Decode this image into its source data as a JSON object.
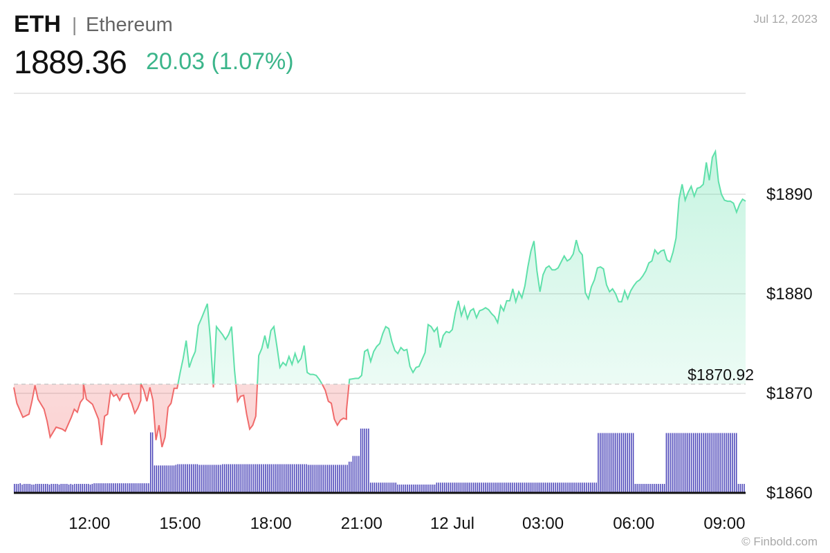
{
  "header": {
    "symbol": "ETH",
    "separator": "|",
    "name": "Ethereum",
    "price": "1889.36",
    "change": "20.03 (1.07%)",
    "date": "Jul 12, 2023"
  },
  "footer": {
    "credit": "© Finbold.com"
  },
  "colors": {
    "up": "#3bb58a",
    "up_line": "#5fe0aa",
    "down_line": "#f06a6a",
    "volume": "#4a44b8",
    "grid": "#dddddd"
  },
  "chart_data": {
    "type": "area",
    "reference": {
      "value": 1870.92,
      "label": "$1870.92"
    },
    "ylim": [
      1860,
      1890
    ],
    "y_ticks": [
      {
        "value": 1860,
        "label": "$1860"
      },
      {
        "value": 1870,
        "label": "$1870"
      },
      {
        "value": 1880,
        "label": "$1880"
      },
      {
        "value": 1890,
        "label": "$1890"
      }
    ],
    "x_ticks": [
      "12:00",
      "15:00",
      "18:00",
      "21:00",
      "12 Jul",
      "03:00",
      "06:00",
      "09:00"
    ],
    "x_tick_hours": [
      2.5,
      5.5,
      8.5,
      11.5,
      14.5,
      17.5,
      20.5,
      23.5
    ],
    "x_range_hours": [
      0,
      24.2
    ],
    "price_series": [
      [
        0.0,
        1870.6
      ],
      [
        0.1,
        1869.0
      ],
      [
        0.3,
        1867.6
      ],
      [
        0.5,
        1867.9
      ],
      [
        0.6,
        1869.2
      ],
      [
        0.7,
        1870.8
      ],
      [
        0.8,
        1869.4
      ],
      [
        1.0,
        1868.4
      ],
      [
        1.1,
        1867.2
      ],
      [
        1.2,
        1865.6
      ],
      [
        1.4,
        1866.6
      ],
      [
        1.6,
        1866.4
      ],
      [
        1.7,
        1866.2
      ],
      [
        1.9,
        1867.6
      ],
      [
        2.0,
        1868.4
      ],
      [
        2.1,
        1868.1
      ],
      [
        2.2,
        1869.1
      ],
      [
        2.3,
        1869.5
      ],
      [
        2.3,
        1871.0
      ],
      [
        2.4,
        1869.4
      ],
      [
        2.6,
        1868.9
      ],
      [
        2.8,
        1867.4
      ],
      [
        2.9,
        1864.8
      ],
      [
        3.0,
        1867.7
      ],
      [
        3.1,
        1867.9
      ],
      [
        3.2,
        1870.2
      ],
      [
        3.3,
        1869.7
      ],
      [
        3.4,
        1869.9
      ],
      [
        3.5,
        1869.3
      ],
      [
        3.6,
        1869.9
      ],
      [
        3.8,
        1870.0
      ],
      [
        3.8,
        1869.7
      ],
      [
        3.9,
        1869.0
      ],
      [
        4.0,
        1868.0
      ],
      [
        4.1,
        1868.5
      ],
      [
        4.2,
        1869.3
      ],
      [
        4.2,
        1871.0
      ],
      [
        4.3,
        1870.3
      ],
      [
        4.4,
        1869.2
      ],
      [
        4.5,
        1870.6
      ],
      [
        4.6,
        1869.3
      ],
      [
        4.7,
        1865.3
      ],
      [
        4.8,
        1866.8
      ],
      [
        4.9,
        1864.6
      ],
      [
        5.0,
        1865.6
      ],
      [
        5.1,
        1868.6
      ],
      [
        5.2,
        1869.0
      ],
      [
        5.3,
        1870.5
      ],
      [
        5.4,
        1870.5
      ],
      [
        5.5,
        1872.1
      ],
      [
        5.6,
        1873.5
      ],
      [
        5.7,
        1875.3
      ],
      [
        5.8,
        1872.6
      ],
      [
        5.9,
        1873.5
      ],
      [
        6.0,
        1874.2
      ],
      [
        6.1,
        1876.8
      ],
      [
        6.2,
        1877.5
      ],
      [
        6.4,
        1879.0
      ],
      [
        6.5,
        1875.4
      ],
      [
        6.6,
        1870.6
      ],
      [
        6.7,
        1876.7
      ],
      [
        6.8,
        1876.3
      ],
      [
        6.9,
        1875.9
      ],
      [
        7.0,
        1875.4
      ],
      [
        7.1,
        1875.9
      ],
      [
        7.2,
        1876.7
      ],
      [
        7.3,
        1872.3
      ],
      [
        7.4,
        1869.2
      ],
      [
        7.5,
        1869.7
      ],
      [
        7.6,
        1869.8
      ],
      [
        7.7,
        1867.9
      ],
      [
        7.8,
        1866.4
      ],
      [
        7.9,
        1866.8
      ],
      [
        8.0,
        1867.7
      ],
      [
        8.1,
        1873.8
      ],
      [
        8.2,
        1874.5
      ],
      [
        8.3,
        1875.8
      ],
      [
        8.4,
        1874.5
      ],
      [
        8.5,
        1876.3
      ],
      [
        8.6,
        1876.7
      ],
      [
        8.7,
        1874.7
      ],
      [
        8.8,
        1872.6
      ],
      [
        8.9,
        1873.1
      ],
      [
        9.0,
        1872.8
      ],
      [
        9.1,
        1873.7
      ],
      [
        9.2,
        1872.9
      ],
      [
        9.3,
        1874.0
      ],
      [
        9.4,
        1873.1
      ],
      [
        9.5,
        1873.5
      ],
      [
        9.6,
        1874.8
      ],
      [
        9.7,
        1872.1
      ],
      [
        9.8,
        1871.9
      ],
      [
        9.9,
        1871.9
      ],
      [
        10.0,
        1871.8
      ],
      [
        10.1,
        1871.4
      ],
      [
        10.2,
        1870.9
      ],
      [
        10.3,
        1870.3
      ],
      [
        10.4,
        1869.2
      ],
      [
        10.5,
        1869.0
      ],
      [
        10.6,
        1867.4
      ],
      [
        10.7,
        1866.8
      ],
      [
        10.8,
        1867.3
      ],
      [
        10.9,
        1867.5
      ],
      [
        11.0,
        1867.4
      ],
      [
        11.0,
        1868.3
      ],
      [
        11.1,
        1871.4
      ],
      [
        11.3,
        1871.5
      ],
      [
        11.4,
        1871.5
      ],
      [
        11.5,
        1871.8
      ],
      [
        11.6,
        1874.2
      ],
      [
        11.7,
        1874.4
      ],
      [
        11.8,
        1873.2
      ],
      [
        11.9,
        1874.2
      ],
      [
        12.0,
        1874.7
      ],
      [
        12.1,
        1875.0
      ],
      [
        12.2,
        1876.0
      ],
      [
        12.3,
        1876.7
      ],
      [
        12.4,
        1876.5
      ],
      [
        12.5,
        1875.2
      ],
      [
        12.6,
        1874.3
      ],
      [
        12.7,
        1874.0
      ],
      [
        12.8,
        1874.6
      ],
      [
        12.9,
        1874.3
      ],
      [
        13.0,
        1874.4
      ],
      [
        13.1,
        1872.7
      ],
      [
        13.2,
        1872.1
      ],
      [
        13.3,
        1872.6
      ],
      [
        13.4,
        1872.7
      ],
      [
        13.5,
        1873.4
      ],
      [
        13.6,
        1874.1
      ],
      [
        13.7,
        1876.9
      ],
      [
        13.8,
        1876.7
      ],
      [
        13.9,
        1876.2
      ],
      [
        14.0,
        1876.6
      ],
      [
        14.1,
        1874.6
      ],
      [
        14.2,
        1875.8
      ],
      [
        14.3,
        1876.2
      ],
      [
        14.4,
        1876.1
      ],
      [
        14.5,
        1876.4
      ],
      [
        14.6,
        1878.1
      ],
      [
        14.7,
        1879.3
      ],
      [
        14.8,
        1877.8
      ],
      [
        14.9,
        1878.7
      ],
      [
        15.0,
        1877.5
      ],
      [
        15.1,
        1878.3
      ],
      [
        15.2,
        1878.5
      ],
      [
        15.3,
        1877.6
      ],
      [
        15.4,
        1878.3
      ],
      [
        15.5,
        1878.4
      ],
      [
        15.6,
        1878.6
      ],
      [
        15.7,
        1878.4
      ],
      [
        15.8,
        1878.0
      ],
      [
        15.9,
        1877.7
      ],
      [
        16.0,
        1877.1
      ],
      [
        16.1,
        1878.8
      ],
      [
        16.2,
        1878.3
      ],
      [
        16.3,
        1879.3
      ],
      [
        16.4,
        1879.3
      ],
      [
        16.5,
        1880.5
      ],
      [
        16.6,
        1879.2
      ],
      [
        16.7,
        1880.2
      ],
      [
        16.8,
        1879.6
      ],
      [
        16.9,
        1880.8
      ],
      [
        17.0,
        1882.7
      ],
      [
        17.1,
        1884.3
      ],
      [
        17.2,
        1885.3
      ],
      [
        17.3,
        1882.3
      ],
      [
        17.4,
        1880.2
      ],
      [
        17.5,
        1881.9
      ],
      [
        17.6,
        1882.6
      ],
      [
        17.7,
        1882.8
      ],
      [
        17.8,
        1882.4
      ],
      [
        17.9,
        1882.4
      ],
      [
        18.0,
        1882.6
      ],
      [
        18.1,
        1883.2
      ],
      [
        18.2,
        1883.8
      ],
      [
        18.3,
        1883.3
      ],
      [
        18.4,
        1883.5
      ],
      [
        18.5,
        1884.0
      ],
      [
        18.6,
        1885.4
      ],
      [
        18.7,
        1884.3
      ],
      [
        18.8,
        1883.9
      ],
      [
        18.9,
        1880.1
      ],
      [
        19.0,
        1879.5
      ],
      [
        19.1,
        1880.7
      ],
      [
        19.2,
        1881.4
      ],
      [
        19.3,
        1882.6
      ],
      [
        19.4,
        1882.7
      ],
      [
        19.5,
        1882.5
      ],
      [
        19.6,
        1880.9
      ],
      [
        19.7,
        1880.2
      ],
      [
        19.8,
        1880.5
      ],
      [
        19.9,
        1880.0
      ],
      [
        20.0,
        1879.2
      ],
      [
        20.1,
        1879.2
      ],
      [
        20.2,
        1880.3
      ],
      [
        20.3,
        1879.5
      ],
      [
        20.4,
        1880.3
      ],
      [
        20.5,
        1880.8
      ],
      [
        20.6,
        1881.2
      ],
      [
        20.7,
        1881.4
      ],
      [
        20.8,
        1881.8
      ],
      [
        20.9,
        1882.3
      ],
      [
        21.0,
        1883.1
      ],
      [
        21.1,
        1883.3
      ],
      [
        21.2,
        1884.4
      ],
      [
        21.3,
        1884.0
      ],
      [
        21.4,
        1884.3
      ],
      [
        21.5,
        1884.4
      ],
      [
        21.6,
        1883.4
      ],
      [
        21.7,
        1883.2
      ],
      [
        21.8,
        1884.2
      ],
      [
        21.9,
        1885.6
      ],
      [
        22.0,
        1889.5
      ],
      [
        22.1,
        1891.0
      ],
      [
        22.2,
        1889.4
      ],
      [
        22.3,
        1890.2
      ],
      [
        22.4,
        1890.8
      ],
      [
        22.5,
        1889.8
      ],
      [
        22.6,
        1890.6
      ],
      [
        22.7,
        1890.7
      ],
      [
        22.8,
        1891.0
      ],
      [
        22.9,
        1893.2
      ],
      [
        23.0,
        1891.4
      ],
      [
        23.1,
        1893.7
      ],
      [
        23.2,
        1894.3
      ],
      [
        23.3,
        1891.3
      ],
      [
        23.4,
        1890.0
      ],
      [
        23.5,
        1889.4
      ],
      [
        23.6,
        1889.3
      ],
      [
        23.7,
        1889.3
      ],
      [
        23.8,
        1889.1
      ],
      [
        23.9,
        1888.2
      ],
      [
        24.0,
        1889.0
      ],
      [
        24.1,
        1889.5
      ],
      [
        24.2,
        1889.3
      ]
    ],
    "volume_bars_normalized": [
      0.13,
      0.13,
      0.13,
      0.14,
      0.12,
      0.13,
      0.13,
      0.13,
      0.13,
      0.12,
      0.12,
      0.13,
      0.13,
      0.13,
      0.13,
      0.13,
      0.13,
      0.13,
      0.12,
      0.13,
      0.13,
      0.13,
      0.13,
      0.12,
      0.13,
      0.13,
      0.13,
      0.13,
      0.12,
      0.13,
      0.12,
      0.13,
      0.13,
      0.13,
      0.13,
      0.13,
      0.13,
      0.13,
      0.13,
      0.12,
      0.13,
      0.14,
      0.14,
      0.14,
      0.14,
      0.14,
      0.14,
      0.14,
      0.14,
      0.14,
      0.14,
      0.14,
      0.14,
      0.14,
      0.14,
      0.14,
      0.14,
      0.14,
      0.14,
      0.14,
      0.14,
      0.14,
      0.14,
      0.14,
      0.14,
      0.14,
      0.14,
      0.14,
      0.14,
      0.14,
      0.94,
      0.94,
      0.42,
      0.42,
      0.42,
      0.42,
      0.42,
      0.42,
      0.42,
      0.42,
      0.42,
      0.42,
      0.42,
      0.43,
      0.44,
      0.44,
      0.44,
      0.44,
      0.44,
      0.44,
      0.44,
      0.44,
      0.44,
      0.44,
      0.44,
      0.43,
      0.43,
      0.43,
      0.43,
      0.43,
      0.43,
      0.43,
      0.43,
      0.43,
      0.43,
      0.43,
      0.43,
      0.44,
      0.44,
      0.44,
      0.44,
      0.44,
      0.44,
      0.44,
      0.44,
      0.44,
      0.44,
      0.44,
      0.44,
      0.44,
      0.44,
      0.44,
      0.44,
      0.44,
      0.44,
      0.44,
      0.44,
      0.44,
      0.44,
      0.44,
      0.44,
      0.44,
      0.44,
      0.44,
      0.44,
      0.44,
      0.44,
      0.44,
      0.44,
      0.44,
      0.44,
      0.44,
      0.44,
      0.44,
      0.44,
      0.44,
      0.44,
      0.44,
      0.44,
      0.44,
      0.44,
      0.43,
      0.43,
      0.43,
      0.43,
      0.43,
      0.43,
      0.43,
      0.43,
      0.43,
      0.43,
      0.43,
      0.43,
      0.43,
      0.43,
      0.43,
      0.43,
      0.43,
      0.43,
      0.43,
      0.43,
      0.43,
      0.48,
      0.48,
      0.57,
      0.57,
      0.57,
      0.57,
      1.0,
      1.0,
      1.0,
      1.0,
      1.0,
      0.15,
      0.15,
      0.15,
      0.15,
      0.15,
      0.15,
      0.15,
      0.15,
      0.15,
      0.15,
      0.15,
      0.15,
      0.15,
      0.15,
      0.12,
      0.12,
      0.12,
      0.12,
      0.12,
      0.12,
      0.12,
      0.12,
      0.12,
      0.12,
      0.12,
      0.12,
      0.12,
      0.12,
      0.12,
      0.12,
      0.12,
      0.12,
      0.12,
      0.12,
      0.15,
      0.15,
      0.15,
      0.15,
      0.15,
      0.15,
      0.15,
      0.15,
      0.15,
      0.15,
      0.15,
      0.15,
      0.15,
      0.15,
      0.15,
      0.15,
      0.15,
      0.15,
      0.15,
      0.15,
      0.15,
      0.15,
      0.15,
      0.15,
      0.15,
      0.15,
      0.15,
      0.15,
      0.15,
      0.15,
      0.15,
      0.15,
      0.15,
      0.15,
      0.15,
      0.15,
      0.15,
      0.15,
      0.15,
      0.15,
      0.15,
      0.15,
      0.15,
      0.15,
      0.15,
      0.15,
      0.15,
      0.15,
      0.15,
      0.15,
      0.15,
      0.15,
      0.15,
      0.15,
      0.15,
      0.15,
      0.15,
      0.15,
      0.15,
      0.15,
      0.15,
      0.15,
      0.15,
      0.15,
      0.15,
      0.15,
      0.15,
      0.15,
      0.15,
      0.15,
      0.15,
      0.15,
      0.15,
      0.15,
      0.15,
      0.15,
      0.15,
      0.15,
      0.15,
      0.15,
      0.15,
      0.15,
      0.15,
      0.93,
      0.93,
      0.93,
      0.93,
      0.93,
      0.93,
      0.93,
      0.93,
      0.93,
      0.93,
      0.93,
      0.93,
      0.93,
      0.93,
      0.93,
      0.93,
      0.93,
      0.93,
      0.93,
      0.13,
      0.13,
      0.13,
      0.13,
      0.13,
      0.13,
      0.13,
      0.13,
      0.13,
      0.13,
      0.13,
      0.13,
      0.13,
      0.13,
      0.13,
      0.13,
      0.93,
      0.93,
      0.93,
      0.93,
      0.93,
      0.93,
      0.93,
      0.93,
      0.93,
      0.93,
      0.93,
      0.93,
      0.93,
      0.93,
      0.93,
      0.93,
      0.93,
      0.93,
      0.93,
      0.93,
      0.93,
      0.93,
      0.93,
      0.93,
      0.93,
      0.93,
      0.93,
      0.93,
      0.93,
      0.93,
      0.93,
      0.93,
      0.93,
      0.93,
      0.93,
      0.93,
      0.93,
      0.13,
      0.13,
      0.13,
      0.13
    ]
  }
}
